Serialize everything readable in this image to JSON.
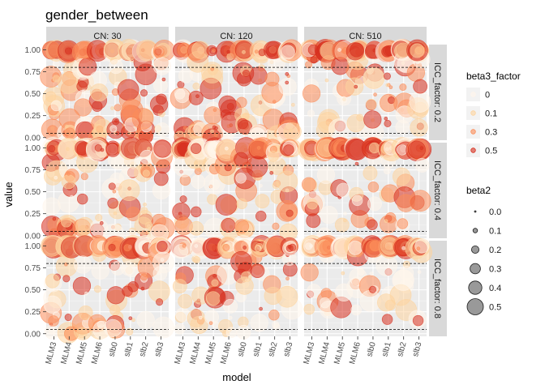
{
  "chart_data": {
    "type": "scatter",
    "title": "gender_between",
    "xlabel": "model",
    "ylabel": "value",
    "categories": [
      "MLM3",
      "MLM4",
      "MLM5",
      "MLM6",
      "slb0",
      "slb1",
      "slb2",
      "slb3"
    ],
    "yticks": [
      "0.00",
      "0.25",
      "0.50",
      "0.75",
      "1.00"
    ],
    "ylim": [
      -0.03,
      1.06
    ],
    "reference_lines": [
      0.05,
      0.8
    ],
    "facet_cols": [
      "CN: 30",
      "CN: 120",
      "CN: 510"
    ],
    "facet_rows": [
      "ICC_factor: 0.2",
      "ICC_factor: 0.4",
      "ICC_factor: 0.8"
    ],
    "legend_color": {
      "title": "beta3_factor",
      "items": [
        {
          "label": "0",
          "color": "#fff5eb"
        },
        {
          "label": "0.1",
          "color": "#fdd49e"
        },
        {
          "label": "0.3",
          "color": "#fc8d59"
        },
        {
          "label": "0.5",
          "color": "#d7301f"
        }
      ]
    },
    "legend_size": {
      "title": "beta2",
      "items": [
        {
          "label": "0.0",
          "size": 0.0
        },
        {
          "label": "0.1",
          "size": 0.1
        },
        {
          "label": "0.2",
          "size": 0.2
        },
        {
          "label": "0.3",
          "size": 0.3
        },
        {
          "label": "0.4",
          "size": 0.4
        },
        {
          "label": "0.5",
          "size": 0.5
        }
      ]
    },
    "panel_background": "#ebebeb",
    "facet_strip_color": "#d9d9d9"
  }
}
